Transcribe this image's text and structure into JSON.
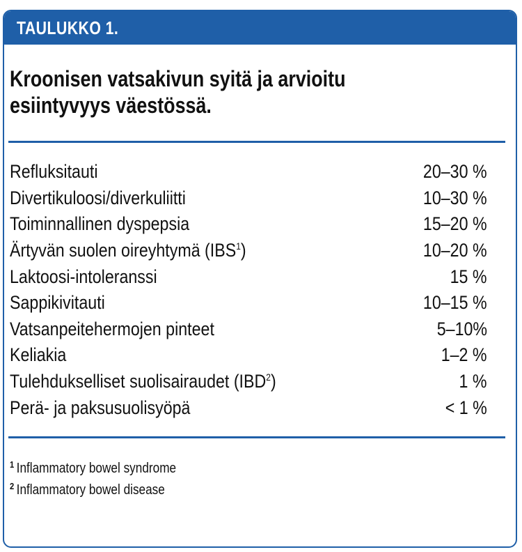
{
  "header": {
    "label": "TAULUKKO 1."
  },
  "title": {
    "line1": "Kroonisen vatsakivun syitä ja arvioitu",
    "line2": "esiintyvyys väestössä."
  },
  "rows": [
    {
      "cause": "Refluksitauti",
      "sup": "",
      "suffix": "",
      "prevalence": "20–30 %"
    },
    {
      "cause": "Divertikuloosi/diverkuliitti",
      "sup": "",
      "suffix": "",
      "prevalence": "10–30 %"
    },
    {
      "cause": "Toiminnallinen dyspepsia",
      "sup": "",
      "suffix": "",
      "prevalence": "15–20 %"
    },
    {
      "cause": "Ärtyvän suolen oireyhtymä (IBS",
      "sup": "1",
      "suffix": ")",
      "prevalence": "10–20 %"
    },
    {
      "cause": "Laktoosi-intoleranssi",
      "sup": "",
      "suffix": "",
      "prevalence": "15 %"
    },
    {
      "cause": "Sappikivitauti",
      "sup": "",
      "suffix": "",
      "prevalence": "10–15 %"
    },
    {
      "cause": "Vatsanpeitehermojen pinteet",
      "sup": "",
      "suffix": "",
      "prevalence": "5–10%"
    },
    {
      "cause": "Keliakia",
      "sup": "",
      "suffix": "",
      "prevalence": "1–2 %"
    },
    {
      "cause": "Tulehdukselliset suolisairaudet (IBD",
      "sup": "2",
      "suffix": ")",
      "prevalence": "1 %"
    },
    {
      "cause": "Perä- ja paksusuolisyöpä",
      "sup": "",
      "suffix": "",
      "prevalence": "< 1 %"
    }
  ],
  "footnotes": [
    {
      "mark": "1",
      "text": "Inflammatory bowel syndrome"
    },
    {
      "mark": "2",
      "text": "Inflammatory bowel disease"
    }
  ],
  "colors": {
    "accent": "#1f5fa8",
    "text": "#111111"
  }
}
